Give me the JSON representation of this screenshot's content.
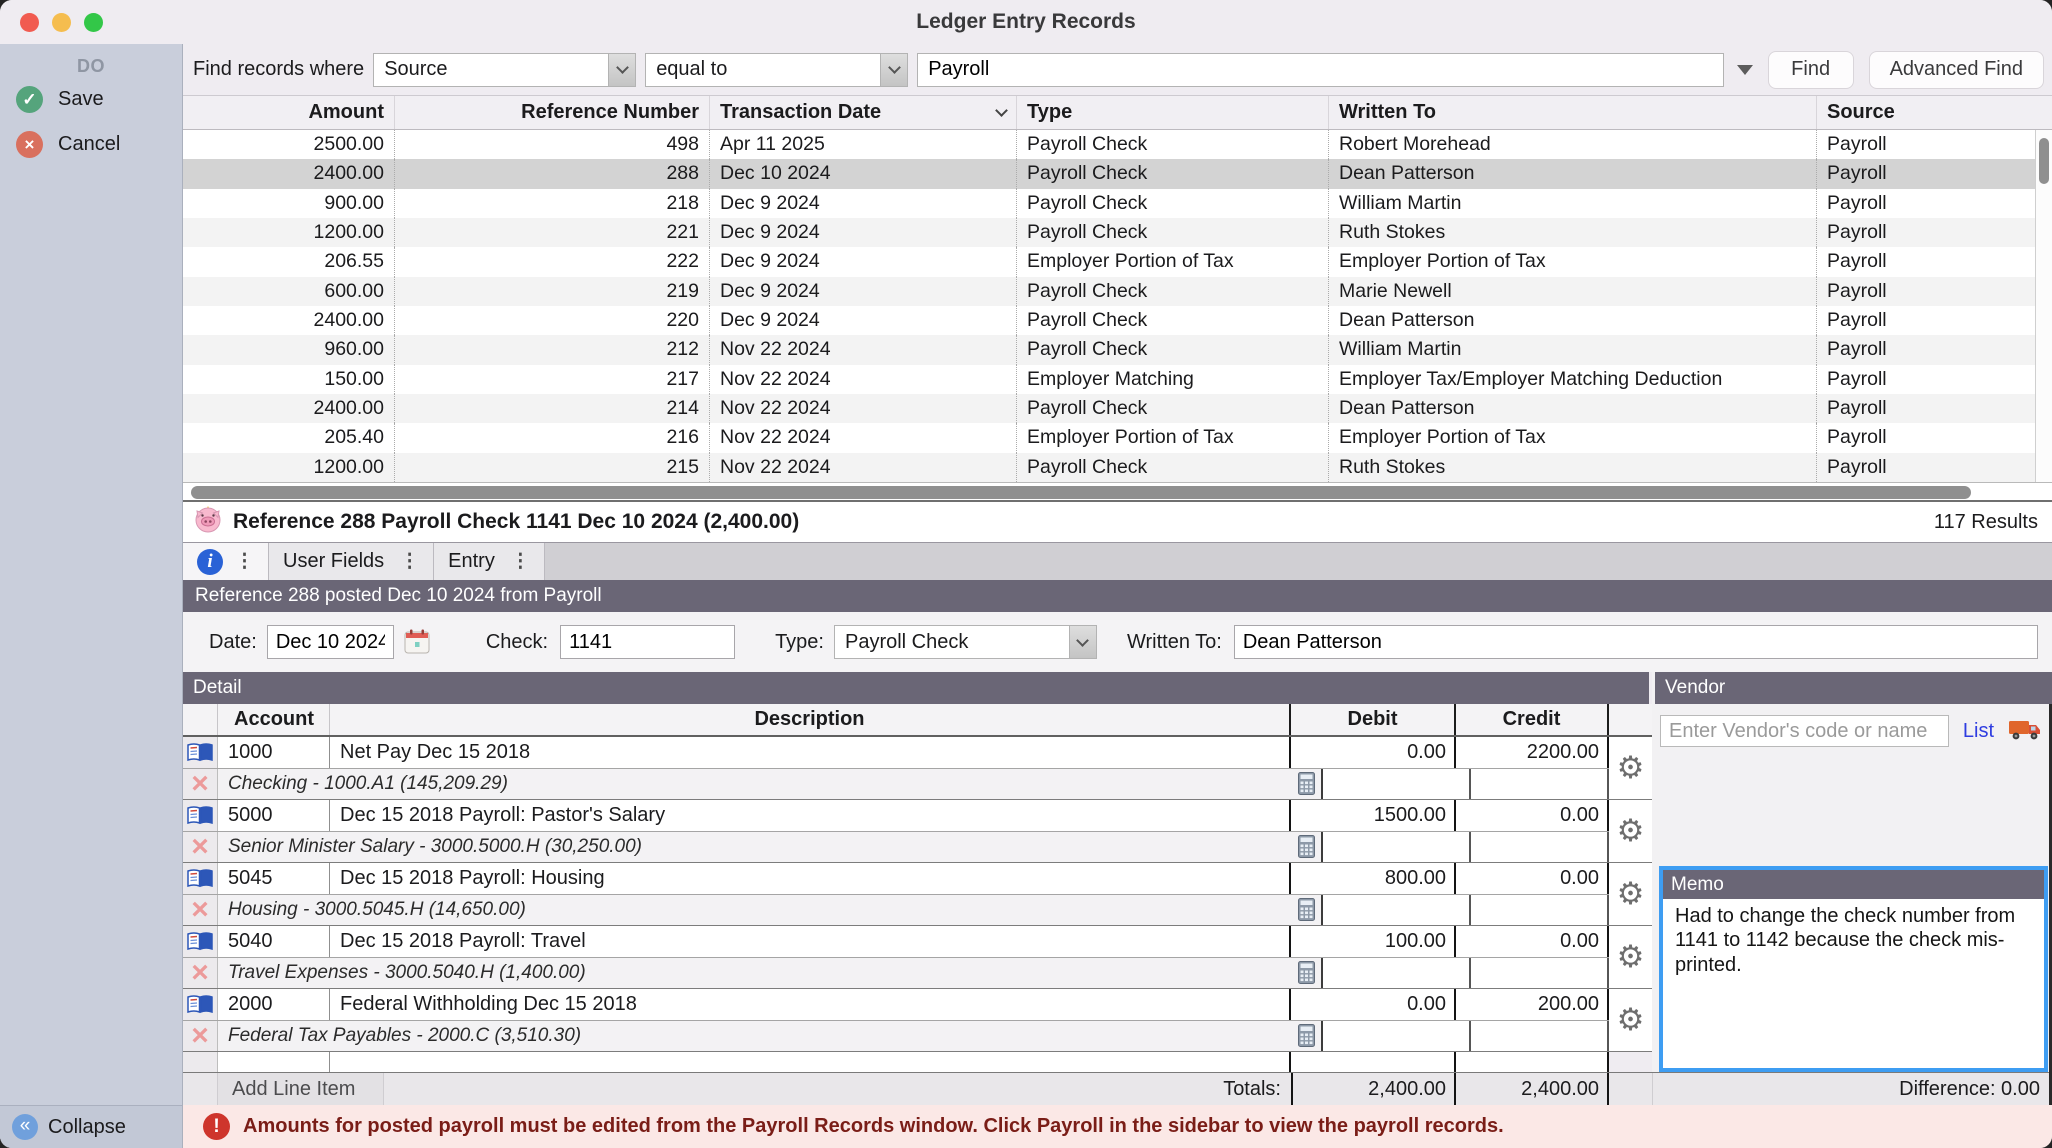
{
  "window": {
    "title": "Ledger Entry Records"
  },
  "sidebar": {
    "heading": "DO",
    "save": "Save",
    "cancel": "Cancel",
    "collapse": "Collapse"
  },
  "find_bar": {
    "label": "Find records where",
    "field": "Source",
    "operator": "equal to",
    "value": "Payroll",
    "find": "Find",
    "advanced_find": "Advanced Find"
  },
  "results_table": {
    "columns": {
      "amount": "Amount",
      "reference": "Reference Number",
      "date": "Transaction Date",
      "type": "Type",
      "written_to": "Written To",
      "source": "Source"
    },
    "rows": [
      {
        "amount": "2500.00",
        "reference": "498",
        "date": "Apr 11 2025",
        "type": "Payroll Check",
        "written_to": "Robert Morehead",
        "source": "Payroll",
        "selected": false
      },
      {
        "amount": "2400.00",
        "reference": "288",
        "date": "Dec 10 2024",
        "type": "Payroll Check",
        "written_to": "Dean Patterson",
        "source": "Payroll",
        "selected": true
      },
      {
        "amount": "900.00",
        "reference": "218",
        "date": "Dec 9 2024",
        "type": "Payroll Check",
        "written_to": "William Martin",
        "source": "Payroll",
        "selected": false
      },
      {
        "amount": "1200.00",
        "reference": "221",
        "date": "Dec 9 2024",
        "type": "Payroll Check",
        "written_to": "Ruth Stokes",
        "source": "Payroll",
        "selected": false
      },
      {
        "amount": "206.55",
        "reference": "222",
        "date": "Dec 9 2024",
        "type": "Employer Portion of Tax",
        "written_to": "Employer Portion of Tax",
        "source": "Payroll",
        "selected": false
      },
      {
        "amount": "600.00",
        "reference": "219",
        "date": "Dec 9 2024",
        "type": "Payroll Check",
        "written_to": "Marie Newell",
        "source": "Payroll",
        "selected": false
      },
      {
        "amount": "2400.00",
        "reference": "220",
        "date": "Dec 9 2024",
        "type": "Payroll Check",
        "written_to": "Dean Patterson",
        "source": "Payroll",
        "selected": false
      },
      {
        "amount": "960.00",
        "reference": "212",
        "date": "Nov 22 2024",
        "type": "Payroll Check",
        "written_to": "William Martin",
        "source": "Payroll",
        "selected": false
      },
      {
        "amount": "150.00",
        "reference": "217",
        "date": "Nov 22 2024",
        "type": "Employer Matching",
        "written_to": "Employer Tax/Employer Matching Deduction",
        "source": "Payroll",
        "selected": false
      },
      {
        "amount": "2400.00",
        "reference": "214",
        "date": "Nov 22 2024",
        "type": "Payroll Check",
        "written_to": "Dean Patterson",
        "source": "Payroll",
        "selected": false
      },
      {
        "amount": "205.40",
        "reference": "216",
        "date": "Nov 22 2024",
        "type": "Employer Portion of Tax",
        "written_to": "Employer Portion of Tax",
        "source": "Payroll",
        "selected": false
      },
      {
        "amount": "1200.00",
        "reference": "215",
        "date": "Nov 22 2024",
        "type": "Payroll Check",
        "written_to": "Ruth Stokes",
        "source": "Payroll",
        "selected": false
      }
    ]
  },
  "record_bar": {
    "title": "Reference 288 Payroll Check 1141 Dec 10 2024 (2,400.00)",
    "results": "117 Results"
  },
  "tabs": {
    "user_fields": "User Fields",
    "entry": "Entry"
  },
  "entry": {
    "posted_header": "Reference 288 posted Dec 10 2024 from Payroll",
    "date_label": "Date:",
    "date": "Dec 10 2024",
    "check_label": "Check:",
    "check": "1141",
    "type_label": "Type:",
    "type": "Payroll Check",
    "written_to_label": "Written To:",
    "written_to": "Dean Patterson"
  },
  "detail": {
    "header": "Detail",
    "columns": {
      "account": "Account",
      "description": "Description",
      "debit": "Debit",
      "credit": "Credit"
    },
    "line_items": [
      {
        "account": "1000",
        "description": "Net Pay Dec 15 2018",
        "debit": "0.00",
        "credit": "2200.00",
        "account_detail": "Checking - 1000.A1 (145,209.29)"
      },
      {
        "account": "5000",
        "description": "Dec 15 2018 Payroll: Pastor's Salary",
        "debit": "1500.00",
        "credit": "0.00",
        "account_detail": "Senior Minister Salary - 3000.5000.H (30,250.00)"
      },
      {
        "account": "5045",
        "description": "Dec 15 2018 Payroll: Housing",
        "debit": "800.00",
        "credit": "0.00",
        "account_detail": "Housing - 3000.5045.H (14,650.00)"
      },
      {
        "account": "5040",
        "description": "Dec 15 2018 Payroll: Travel",
        "debit": "100.00",
        "credit": "0.00",
        "account_detail": "Travel Expenses - 3000.5040.H (1,400.00)"
      },
      {
        "account": "2000",
        "description": "Federal Withholding Dec 15 2018",
        "debit": "0.00",
        "credit": "200.00",
        "account_detail": "Federal Tax Payables - 2000.C (3,510.30)"
      }
    ],
    "add_line_item": "Add Line Item",
    "totals_label": "Totals:",
    "total_debit": "2,400.00",
    "total_credit": "2,400.00"
  },
  "vendor": {
    "header": "Vendor",
    "placeholder": "Enter Vendor's code or name",
    "list": "List",
    "difference": "Difference: 0.00"
  },
  "memo": {
    "header": "Memo",
    "text": "Had to change the check number from 1141 to 1142 because the check mis-printed."
  },
  "warning": {
    "text": "Amounts for posted payroll must be edited from the Payroll Records window. Click Payroll in the sidebar to view the payroll records."
  },
  "icons": {
    "info": "i",
    "dots": "⋮",
    "gear": "⚙",
    "save_check": "✓",
    "cancel_x": "×",
    "collapse": "«",
    "warning": "!",
    "row_delete": "×"
  }
}
